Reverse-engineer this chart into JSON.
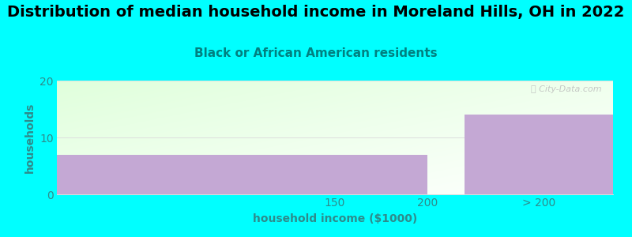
{
  "title": "Distribution of median household income in Moreland Hills, OH in 2022",
  "subtitle": "Black or African American residents",
  "xlabel": "household income ($1000)",
  "ylabel": "households",
  "background_color": "#00FFFF",
  "bar_color": "#C4A8D4",
  "ylim": [
    0,
    20
  ],
  "yticks": [
    0,
    10,
    20
  ],
  "xtick_labels": [
    "150",
    "200",
    "> 200"
  ],
  "bars": [
    {
      "x_left": 0,
      "x_right": 200,
      "height": 7
    },
    {
      "x_left": 220,
      "x_right": 300,
      "height": 14
    }
  ],
  "xlim": [
    0,
    300
  ],
  "xtick_positions": [
    150,
    200,
    260
  ],
  "title_fontsize": 14,
  "subtitle_fontsize": 11,
  "axis_label_fontsize": 10,
  "tick_label_fontsize": 10,
  "tick_color": "#2E8B8B",
  "label_color": "#2E8B8B",
  "title_color": "#000000",
  "subtitle_color": "#008080",
  "watermark_text": "ⓘ City-Data.com",
  "grid_color": "#dddddd",
  "gradient_topleft": [
    224,
    255,
    220
  ],
  "gradient_bottomright": [
    255,
    255,
    255
  ]
}
